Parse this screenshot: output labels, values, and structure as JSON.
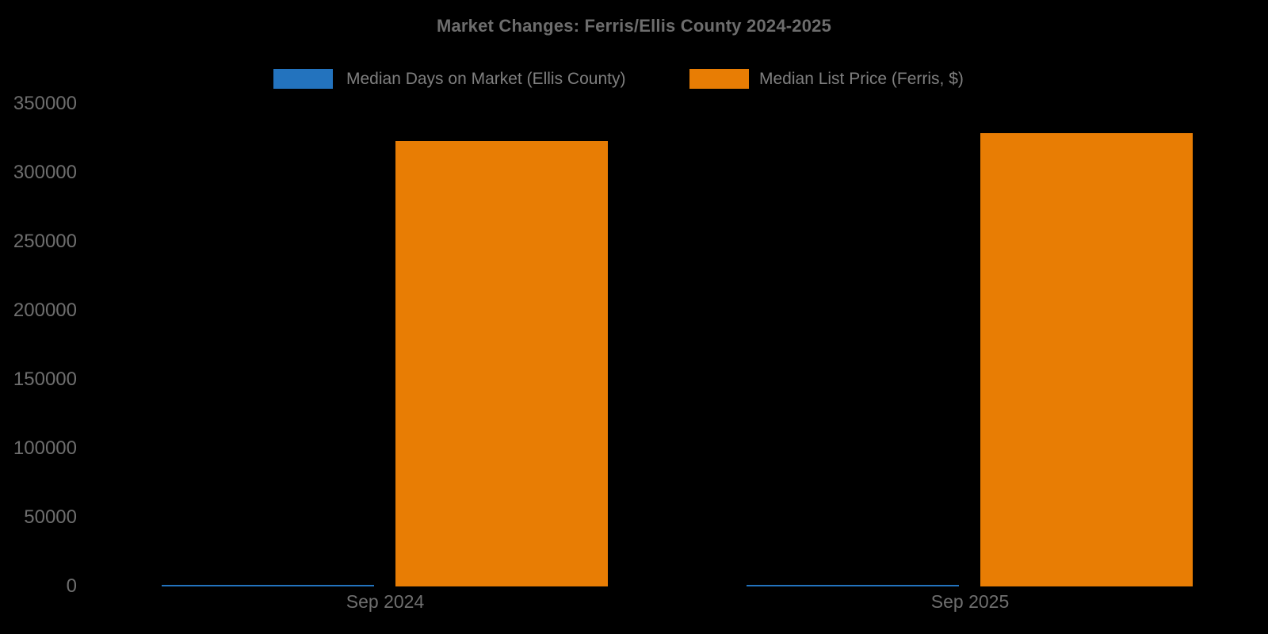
{
  "chart_data": {
    "type": "bar",
    "title": "Market Changes: Ferris/Ellis County 2024-2025",
    "categories": [
      "Sep 2024",
      "Sep 2025"
    ],
    "series": [
      {
        "name": "Median Days on Market (Ellis County)",
        "color": "#2373be",
        "values": [
          0,
          0
        ],
        "note": "Values are near zero relative to the 0-350000 axis scale; bars render only as a thin sliver at the baseline."
      },
      {
        "name": "Median List Price (Ferris, $)",
        "color": "#e87d04",
        "values": [
          323000,
          329000
        ],
        "note": "Values estimated from bar heights against y-axis ticks."
      }
    ],
    "xlabel": "",
    "ylabel": "",
    "ylim": [
      0,
      350000
    ],
    "yticks": [
      0,
      50000,
      100000,
      150000,
      200000,
      250000,
      300000,
      350000
    ],
    "grid": false,
    "axis_lines": false,
    "legend_position": "top-center",
    "background_color": "#000000",
    "title_color": "#6d6d6d",
    "tick_label_color": "#6e6e6e",
    "legend_text_color": "#7f7f7f"
  }
}
